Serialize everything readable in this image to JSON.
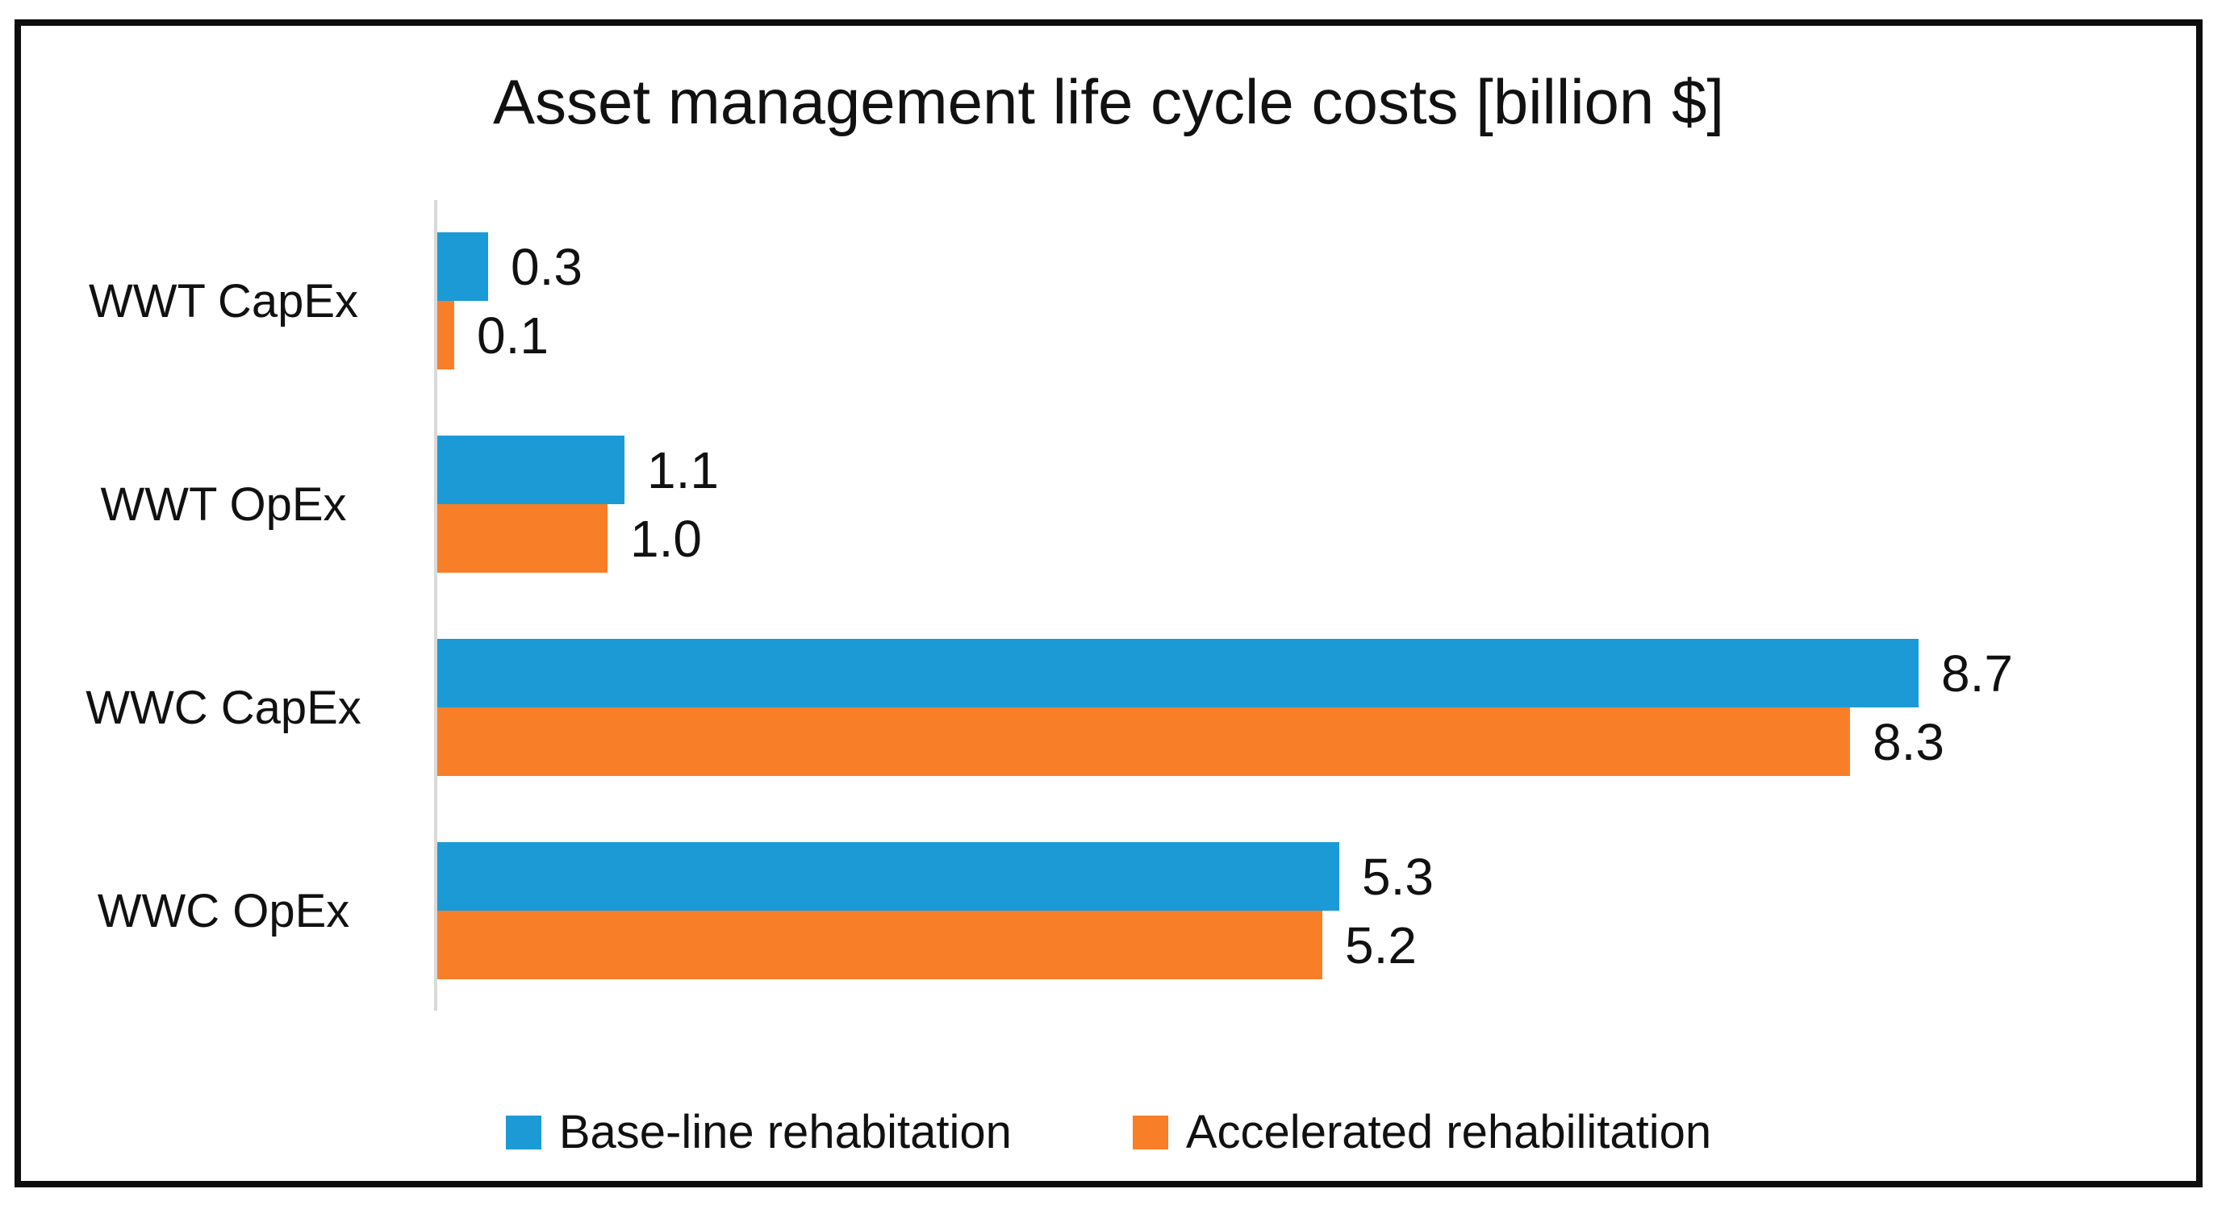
{
  "title": "Asset management life cycle costs [billion $]",
  "colors": {
    "series_baseline": "#1C9AD6",
    "series_accelerated": "#F87E28",
    "axis_line": "#D9D9D9",
    "frame_border": "#0D0D0D",
    "text": "#111111",
    "background": "#FFFFFF"
  },
  "chart_data": {
    "type": "bar",
    "orientation": "horizontal",
    "title": "Asset management life cycle costs [billion $]",
    "categories": [
      "WWT CapEx",
      "WWT OpEx",
      "WWC CapEx",
      "WWC OpEx"
    ],
    "series": [
      {
        "name": "Base-line rehabitation",
        "color": "#1C9AD6",
        "values": [
          0.3,
          1.1,
          8.7,
          5.3
        ],
        "labels": [
          "0.3",
          "1.1",
          "8.7",
          "5.3"
        ]
      },
      {
        "name": "Accelerated rehabilitation",
        "color": "#F87E28",
        "values": [
          0.1,
          1.0,
          8.3,
          5.2
        ],
        "labels": [
          "0.1",
          "1.0",
          "8.3",
          "5.2"
        ]
      }
    ],
    "xlim": [
      0,
      10.4
    ],
    "xlabel": "",
    "ylabel": "",
    "grid": false,
    "value_labels_shown": true,
    "legend_position": "bottom"
  }
}
